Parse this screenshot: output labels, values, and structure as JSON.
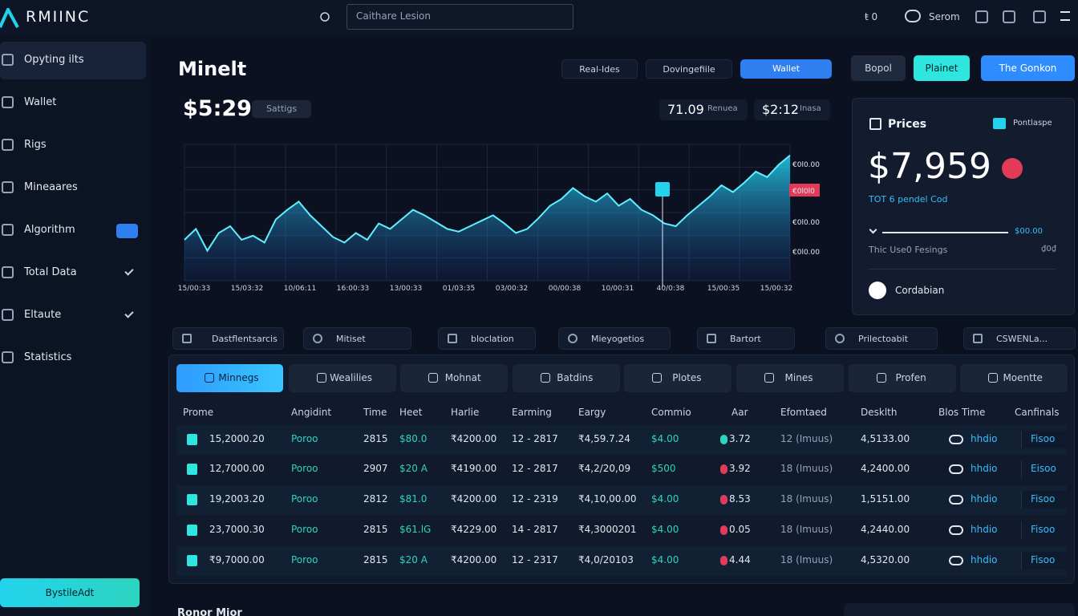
{
  "brand": "RMIINC",
  "search": "Caithare Lesion",
  "topbar": {
    "counter": "ŧ 0",
    "user": "Serom"
  },
  "sidebar": {
    "items": [
      "Opyting ilts",
      "Wallet",
      "Rigs",
      "Mineaares",
      "Algorithm",
      "Total Data",
      "Eltaute",
      "Statistics"
    ],
    "button": "BystileAdt"
  },
  "header": {
    "title": "Minelt",
    "buttons": [
      "Real-Ides",
      "Dovingefiile",
      "Wallet",
      "Bopol",
      "Plainet",
      "The Gonkon"
    ]
  },
  "price": {
    "value": "$5:29",
    "tag": "Sattigs",
    "stat1": "71.09",
    "stat1_label": "Renuea",
    "stat2": "$2:12",
    "stat2_label": "Inasa"
  },
  "chart": {
    "type": "area",
    "values": [
      30,
      38,
      22,
      35,
      40,
      30,
      33,
      28,
      45,
      52,
      58,
      48,
      40,
      32,
      28,
      35,
      30,
      42,
      38,
      45,
      52,
      48,
      43,
      38,
      36,
      40,
      44,
      48,
      42,
      35,
      38,
      46,
      55,
      60,
      68,
      62,
      58,
      64,
      55,
      60,
      52,
      48,
      42,
      40,
      48,
      55,
      62,
      70,
      65,
      72,
      80,
      76,
      85,
      92
    ],
    "ylim": [
      0,
      100
    ],
    "y_labels": [
      "€0l0.00",
      "€0l0l0",
      "€0l0.00",
      "€0l0.00"
    ],
    "x_labels": [
      "15/00:33",
      "15/03:32",
      "10/06:11",
      "16:00:33",
      "13/00:33",
      "01/03:35",
      "03/00:32",
      "00/00:38",
      "10/00:31",
      "40/0:38",
      "15/00:35",
      "15/00:32"
    ]
  },
  "panel": {
    "title": "Prices",
    "badge": "Pontlaspe",
    "price": "$7,959",
    "sub": "TOT 6 pendel Cod",
    "slider_value": "$00.00",
    "row_label": "Thic Use0 Fesings",
    "row_value": "₫0₫",
    "action": "Cordabian"
  },
  "filters": [
    "Dastflentsarcis",
    "Mitiset",
    "bloclation",
    "Mieyogetios",
    "Bartort",
    "Prilectoabit",
    "CSWENLa..."
  ],
  "tabs": [
    "Minnegs",
    "Wealilies",
    "Mohnat",
    "Batdins",
    "Plotes",
    "Mines",
    "Profen",
    "Moentte"
  ],
  "table": {
    "headers": [
      "Prome",
      "Angidint",
      "Time",
      "Heet",
      "Harlie",
      "Earming",
      "Eargy",
      "Commio",
      "Aar",
      "Efomtaed",
      "Desklth",
      "Blos Time",
      "Canfinals"
    ],
    "rows": [
      [
        "15,2000.20",
        "Poroo",
        "2815",
        "$80.0",
        "₹4200.00",
        "12 - 2817",
        "₹4,59.7.24",
        "$4.00",
        "3.72",
        "12 (Imuus)",
        "4,5133.00",
        "hhdio",
        "Fisoo"
      ],
      [
        "12,7000.00",
        "Poroo",
        "2907",
        "$20 A",
        "₹4190.00",
        "12 - 2817",
        "₹4,2/20,09",
        "$500",
        "3.92",
        "18 (Imuus)",
        "4,2400.00",
        "hhdio",
        "Eisoo"
      ],
      [
        "19,2003.20",
        "Poroo",
        "2812",
        "$81.0",
        "₹4200.00",
        "12 - 2319",
        "₹4,10,00.00",
        "$4.00",
        "8.53",
        "18 (Imuus)",
        "1,5151.00",
        "hhdio",
        "Fisoo"
      ],
      [
        "23,7000.30",
        "Poroo",
        "2815",
        "$61.lG",
        "₹4229.00",
        "14 - 2817",
        "₹4,3000201",
        "$4.00",
        "0.05",
        "18 (Imuus)",
        "4,2440.00",
        "hhdio",
        "Fisoo"
      ],
      [
        "₹9,7000.00",
        "Poroo",
        "2815",
        "$20 A",
        "₹4200.00",
        "12 - 2317",
        "₹4,0/20103",
        "$4.00",
        "4.44",
        "18 (Imuus)",
        "4,5320.00",
        "hhdio",
        "Fisoo"
      ]
    ]
  },
  "footer_title": "Ronor Mior"
}
